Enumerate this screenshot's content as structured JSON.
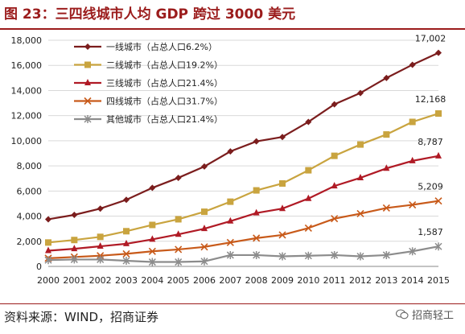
{
  "figure": {
    "title": "图 23：三四线城市人均 GDP 跨过 3000 美元",
    "source": "资料来源：WIND，招商证券",
    "watermark": "招商轻工"
  },
  "chart_data": {
    "type": "line",
    "x": [
      "2000",
      "2001",
      "2002",
      "2003",
      "2004",
      "2005",
      "2006",
      "2007",
      "2008",
      "2009",
      "2010",
      "2011",
      "2012",
      "2013",
      "2014",
      "2015"
    ],
    "ylim": [
      0,
      18000
    ],
    "yticks": [
      0,
      2000,
      4000,
      6000,
      8000,
      10000,
      12000,
      14000,
      16000,
      18000
    ],
    "ytick_labels": [
      "0",
      "2,000",
      "4,000",
      "6,000",
      "8,000",
      "10,000",
      "12,000",
      "14,000",
      "16,000",
      "18,000"
    ],
    "grid": true,
    "legend_position": "top-left",
    "series": [
      {
        "name": "一线城市（占总人口6.2%）",
        "color": "#7b1d1d",
        "marker": "diamond",
        "values": [
          3750,
          4100,
          4600,
          5300,
          6250,
          7050,
          7950,
          9150,
          9950,
          10300,
          11500,
          12900,
          13800,
          15000,
          16050,
          17002
        ],
        "end_label": "17,002"
      },
      {
        "name": "二线城市（占总人口19.2%）",
        "color": "#c9a43f",
        "marker": "square",
        "values": [
          1900,
          2100,
          2350,
          2800,
          3300,
          3750,
          4350,
          5150,
          6050,
          6600,
          7650,
          8800,
          9700,
          10500,
          11500,
          12168
        ],
        "end_label": "12,168"
      },
      {
        "name": "三线城市（占总人口21.4%）",
        "color": "#b01a25",
        "marker": "triangle",
        "values": [
          1250,
          1400,
          1600,
          1800,
          2150,
          2550,
          3000,
          3600,
          4250,
          4600,
          5400,
          6400,
          7050,
          7800,
          8400,
          8787
        ],
        "end_label": "8,787"
      },
      {
        "name": "四线城市（占总人口31.7%）",
        "color": "#c85a1a",
        "marker": "x",
        "values": [
          650,
          750,
          850,
          1000,
          1200,
          1350,
          1550,
          1900,
          2250,
          2500,
          3050,
          3800,
          4200,
          4650,
          4900,
          5209
        ],
        "end_label": "5,209"
      },
      {
        "name": "其他城市（占总人口21.4%）",
        "color": "#8c8c8c",
        "marker": "star",
        "values": [
          500,
          550,
          550,
          450,
          350,
          350,
          400,
          900,
          900,
          800,
          850,
          900,
          800,
          900,
          1200,
          1587
        ],
        "end_label": "1,587"
      }
    ]
  }
}
